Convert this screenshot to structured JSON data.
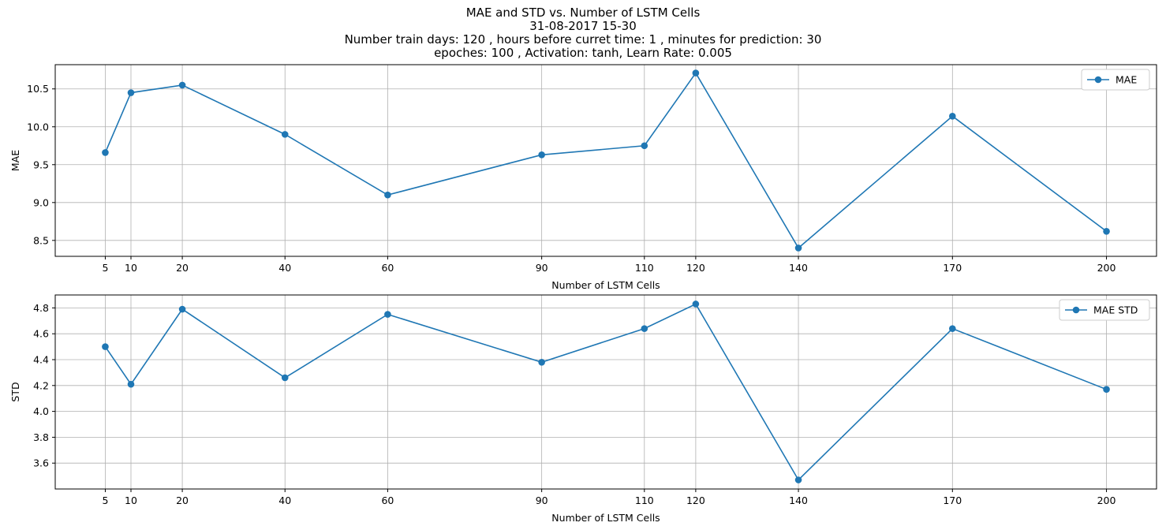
{
  "title_lines": [
    "MAE and STD vs. Number of LSTM Cells",
    "31-08-2017 15-30",
    "Number train days: 120 , hours before curret time: 1 , minutes for prediction: 30",
    "epoches: 100 , Activation: tanh, Learn Rate: 0.005"
  ],
  "colors": {
    "line": "#1f77b4",
    "grid": "#b0b0b0",
    "axis": "#000000"
  },
  "chart_data": [
    {
      "type": "line",
      "xlabel": "Number of LSTM Cells",
      "ylabel": "MAE",
      "x": [
        5,
        10,
        20,
        40,
        60,
        90,
        110,
        120,
        140,
        170,
        200
      ],
      "series": [
        {
          "name": "MAE",
          "values": [
            9.66,
            10.45,
            10.55,
            9.9,
            9.1,
            9.63,
            9.75,
            10.71,
            8.4,
            10.14,
            8.62
          ]
        }
      ],
      "xlim": [
        -4.75,
        209.75
      ],
      "ylim": [
        8.29,
        10.82
      ],
      "xticks": [
        5,
        10,
        20,
        40,
        60,
        90,
        110,
        120,
        140,
        170,
        200
      ],
      "yticks": [
        8.5,
        9.0,
        9.5,
        10.0,
        10.5
      ],
      "ytick_labels": [
        "8.5",
        "9.0",
        "9.5",
        "10.0",
        "10.5"
      ],
      "grid": true,
      "marker": "circle",
      "legend": "top-right"
    },
    {
      "type": "line",
      "xlabel": "Number of LSTM Cells",
      "ylabel": "STD",
      "x": [
        5,
        10,
        20,
        40,
        60,
        90,
        110,
        120,
        140,
        170,
        200
      ],
      "series": [
        {
          "name": "MAE STD",
          "values": [
            4.5,
            4.21,
            4.79,
            4.26,
            4.75,
            4.38,
            4.64,
            4.83,
            3.47,
            4.64,
            4.17
          ]
        }
      ],
      "xlim": [
        -4.75,
        209.75
      ],
      "ylim": [
        3.4,
        4.9
      ],
      "xticks": [
        5,
        10,
        20,
        40,
        60,
        90,
        110,
        120,
        140,
        170,
        200
      ],
      "yticks": [
        3.6,
        3.8,
        4.0,
        4.2,
        4.4,
        4.6,
        4.8
      ],
      "ytick_labels": [
        "3.6",
        "3.8",
        "4.0",
        "4.2",
        "4.4",
        "4.6",
        "4.8"
      ],
      "grid": true,
      "marker": "circle",
      "legend": "top-right"
    }
  ]
}
